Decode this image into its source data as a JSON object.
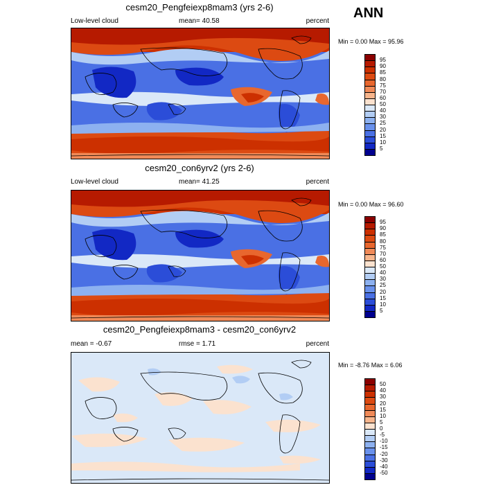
{
  "season": "ANN",
  "panels": [
    {
      "title": "cesm20_Pengfeiexp8mam3 (yrs 2-6)",
      "left_label": "Low-level cloud",
      "mean_text": "mean=  40.58",
      "units": "percent",
      "minmax": "Min =   0.00 Max =  95.96",
      "colorbar": {
        "labels": [
          "95",
          "90",
          "85",
          "80",
          "75",
          "70",
          "60",
          "50",
          "40",
          "30",
          "25",
          "20",
          "15",
          "10",
          "5"
        ],
        "colors": [
          "#8b0000",
          "#b61a00",
          "#cc3000",
          "#dc4a12",
          "#e8672e",
          "#f08a58",
          "#f7b58c",
          "#fbe2cf",
          "#dae8f8",
          "#b2cdf4",
          "#8db1f0",
          "#6991ec",
          "#4a70e4",
          "#2b4dd8",
          "#1228c4",
          "#00008f"
        ]
      }
    },
    {
      "title": "cesm20_con6yrv2 (yrs 2-6)",
      "left_label": "Low-level cloud",
      "mean_text": "mean=  41.25",
      "units": "percent",
      "minmax": "Min =   0.00 Max =  96.60",
      "colorbar": {
        "labels": [
          "95",
          "90",
          "85",
          "80",
          "75",
          "70",
          "60",
          "50",
          "40",
          "30",
          "25",
          "20",
          "15",
          "10",
          "5"
        ],
        "colors": [
          "#8b0000",
          "#b61a00",
          "#cc3000",
          "#dc4a12",
          "#e8672e",
          "#f08a58",
          "#f7b58c",
          "#fbe2cf",
          "#dae8f8",
          "#b2cdf4",
          "#8db1f0",
          "#6991ec",
          "#4a70e4",
          "#2b4dd8",
          "#1228c4",
          "#00008f"
        ]
      }
    },
    {
      "title": "cesm20_Pengfeiexp8mam3 - cesm20_con6yrv2",
      "left_label": "mean =  -0.67",
      "mean_text": "rmse =    1.71",
      "units": "percent",
      "minmax": "Min =  -8.76 Max =    6.06",
      "colorbar": {
        "labels": [
          "50",
          "40",
          "30",
          "20",
          "15",
          "10",
          "5",
          "0",
          "-5",
          "-10",
          "-15",
          "-20",
          "-30",
          "-40",
          "-50"
        ],
        "colors": [
          "#8b0000",
          "#b61a00",
          "#cc3000",
          "#dc4a12",
          "#e8672e",
          "#f08a58",
          "#f7b58c",
          "#fbe2cf",
          "#dae8f8",
          "#b2cdf4",
          "#8db1f0",
          "#6991ec",
          "#4a70e4",
          "#2b4dd8",
          "#1228c4",
          "#00008f"
        ]
      }
    }
  ]
}
